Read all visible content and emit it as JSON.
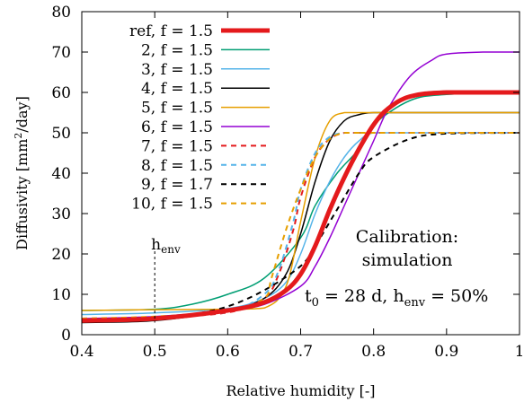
{
  "chart_data": {
    "type": "line",
    "xlabel": "Relative humidity [-]",
    "ylabel_main": "Diffusivity [mm",
    "ylabel_sup": "2",
    "ylabel_tail": "/day]",
    "xlim": [
      0.4,
      1.0
    ],
    "ylim": [
      0,
      80
    ],
    "xticks": [
      0.4,
      0.5,
      0.6,
      0.7,
      0.8,
      0.9,
      1.0
    ],
    "xtick_labels": [
      "0.4",
      "0.5",
      "0.6",
      "0.7",
      "0.8",
      "0.9",
      "1"
    ],
    "yticks": [
      0,
      10,
      20,
      30,
      40,
      50,
      60,
      70,
      80
    ],
    "ytick_labels": [
      "0",
      "10",
      "20",
      "30",
      "40",
      "50",
      "60",
      "70",
      "80"
    ],
    "grid": false,
    "legend_position": "top-left",
    "annotations": {
      "henv_marker_x": 0.5,
      "henv_label_main": "h",
      "henv_label_sub": "env",
      "calib_line1": "Calibration:",
      "calib_line2": "simulation",
      "t_main": "t",
      "t_sub": "0",
      "t_mid": " = 28 d, h",
      "t_sub2": "env",
      "t_tail": " = 50%"
    },
    "series": [
      {
        "name": "ref, f = 1.5",
        "color": "#e41a1c",
        "dash": "solid",
        "width": 5,
        "x": [
          0.4,
          0.5,
          0.6,
          0.65,
          0.68,
          0.7,
          0.72,
          0.74,
          0.76,
          0.78,
          0.8,
          0.82,
          0.85,
          0.9,
          1.0
        ],
        "y": [
          3.5,
          4,
          6,
          8,
          11,
          15,
          22,
          31,
          39,
          46,
          52,
          56,
          59,
          60,
          60
        ]
      },
      {
        "name": "2, f = 1.5",
        "color": "#009e73",
        "dash": "solid",
        "width": 1.5,
        "x": [
          0.4,
          0.5,
          0.55,
          0.6,
          0.65,
          0.7,
          0.72,
          0.75,
          0.78,
          0.8,
          0.85,
          0.9,
          1.0
        ],
        "y": [
          6,
          6.3,
          7.5,
          10,
          14,
          24,
          32,
          40,
          46,
          52,
          58,
          59.5,
          60
        ]
      },
      {
        "name": "3, f = 1.5",
        "color": "#56b4e9",
        "dash": "solid",
        "width": 1.5,
        "x": [
          0.4,
          0.5,
          0.6,
          0.65,
          0.68,
          0.7,
          0.72,
          0.74,
          0.76,
          0.78,
          0.8,
          0.85,
          1.0
        ],
        "y": [
          5,
          5.4,
          6.5,
          9,
          13,
          20,
          30,
          38,
          44,
          48,
          50,
          50,
          50
        ]
      },
      {
        "name": "4, f = 1.5",
        "color": "#000000",
        "dash": "solid",
        "width": 1.5,
        "x": [
          0.4,
          0.5,
          0.6,
          0.65,
          0.68,
          0.7,
          0.72,
          0.74,
          0.76,
          0.78,
          0.8,
          0.85,
          1.0
        ],
        "y": [
          3,
          3.5,
          6,
          9,
          15,
          25,
          38,
          48,
          53,
          54.5,
          55,
          55,
          55
        ]
      },
      {
        "name": "5, f = 1.5",
        "color": "#e69f00",
        "dash": "solid",
        "width": 1.5,
        "x": [
          0.4,
          0.5,
          0.6,
          0.65,
          0.68,
          0.7,
          0.72,
          0.74,
          0.76,
          0.78,
          0.8,
          0.85,
          1.0
        ],
        "y": [
          6,
          6.2,
          6.3,
          6.6,
          12,
          28,
          44,
          53,
          55,
          55,
          55,
          55,
          55
        ]
      },
      {
        "name": "6, f = 1.5",
        "color": "#9400d3",
        "dash": "solid",
        "width": 1.5,
        "x": [
          0.4,
          0.5,
          0.6,
          0.65,
          0.7,
          0.72,
          0.74,
          0.76,
          0.78,
          0.8,
          0.82,
          0.85,
          0.88,
          0.9,
          0.95,
          1.0
        ],
        "y": [
          4,
          4.5,
          6,
          7.5,
          12,
          17,
          24,
          32,
          40,
          48,
          56,
          64,
          68,
          69.5,
          70,
          70
        ]
      },
      {
        "name": "7, f = 1.5",
        "color": "#e41a1c",
        "dash": "dash",
        "width": 2,
        "x": [
          0.4,
          0.5,
          0.6,
          0.65,
          0.67,
          0.69,
          0.7,
          0.72,
          0.74,
          0.76,
          0.78,
          0.8,
          1.0
        ],
        "y": [
          4,
          4.3,
          5.5,
          9,
          15,
          26,
          34,
          44,
          48.5,
          50,
          50,
          50,
          50
        ]
      },
      {
        "name": "8, f = 1.5",
        "color": "#56b4e9",
        "dash": "dash",
        "width": 2,
        "x": [
          0.4,
          0.5,
          0.6,
          0.65,
          0.67,
          0.69,
          0.7,
          0.72,
          0.74,
          0.76,
          0.78,
          0.8,
          1.0
        ],
        "y": [
          4,
          4.4,
          5.7,
          10,
          16,
          28,
          36,
          45,
          49,
          50,
          50,
          50,
          50
        ]
      },
      {
        "name": "9, f = 1.7",
        "color": "#000000",
        "dash": "dash",
        "width": 2,
        "x": [
          0.4,
          0.5,
          0.55,
          0.6,
          0.65,
          0.7,
          0.72,
          0.75,
          0.78,
          0.8,
          0.85,
          0.9,
          1.0
        ],
        "y": [
          3.5,
          4,
          5,
          7,
          11,
          17,
          22,
          31,
          40,
          44,
          48.5,
          49.8,
          50
        ]
      },
      {
        "name": "10, f = 1.5",
        "color": "#e69f00",
        "dash": "dash",
        "width": 2,
        "x": [
          0.4,
          0.5,
          0.6,
          0.65,
          0.66,
          0.68,
          0.7,
          0.72,
          0.74,
          0.76,
          0.78,
          0.8,
          1.0
        ],
        "y": [
          4,
          4.5,
          5.8,
          9,
          14,
          26,
          36,
          44,
          48.5,
          50,
          50,
          50,
          50
        ]
      }
    ]
  }
}
